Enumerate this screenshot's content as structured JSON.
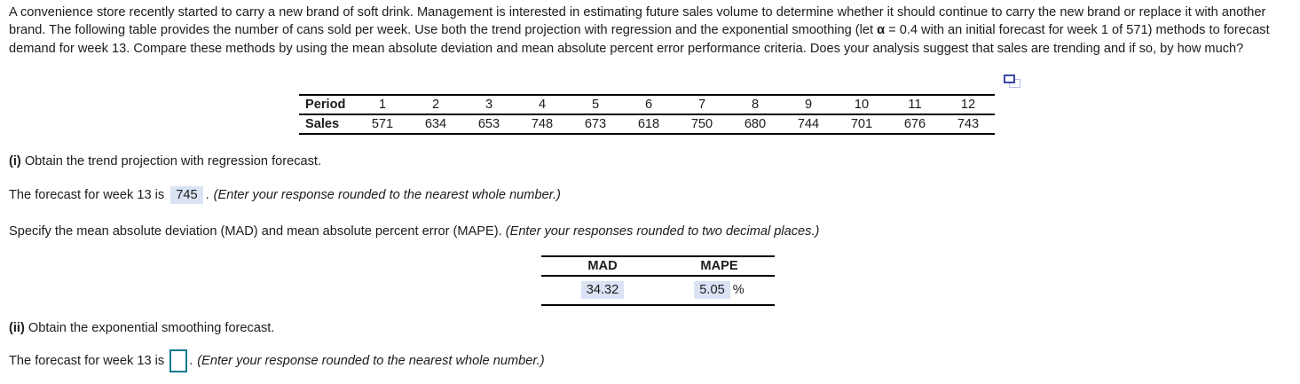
{
  "question": {
    "part1": "A convenience store recently started to carry a new brand of soft drink. Management is interested in estimating future sales volume to determine whether it should continue to carry the new brand or replace it with another brand. The following table provides the number of cans sold per week. Use both the trend projection with regression and the exponential smoothing (let ",
    "alpha": "α",
    "part2": " = 0.4 with an initial forecast for week 1 of 571) methods to forecast demand for week 13. Compare these methods by using the mean absolute deviation and mean absolute percent error performance criteria. Does your analysis suggest that sales are trending and if so, by how much?"
  },
  "icons": {
    "copy_icon": "copy-overlapping-windows-icon"
  },
  "sales_table": {
    "period_label": "Period",
    "sales_label": "Sales",
    "periods": [
      "1",
      "2",
      "3",
      "4",
      "5",
      "6",
      "7",
      "8",
      "9",
      "10",
      "11",
      "12"
    ],
    "sales": [
      "571",
      "634",
      "653",
      "748",
      "673",
      "618",
      "750",
      "680",
      "744",
      "701",
      "676",
      "743"
    ]
  },
  "section_i": {
    "label": "(i)",
    "heading": " Obtain the trend projection with regression forecast.",
    "forecast_prefix": "The forecast for week 13 is",
    "forecast_value": "745",
    "period": ".",
    "note": "(Enter your response rounded to the nearest whole number.)",
    "specify_text": "Specify the mean absolute deviation (MAD) and mean absolute percent error (MAPE).",
    "specify_note": "(Enter your responses rounded to two decimal places.)"
  },
  "mad_mape": {
    "mad_header": "MAD",
    "mape_header": "MAPE",
    "mad_value": "34.32",
    "mape_value": "5.05",
    "mape_unit": "%"
  },
  "section_ii": {
    "label": "(ii)",
    "heading": " Obtain the exponential smoothing forecast.",
    "forecast_prefix": "The forecast for week 13 is",
    "input_value": "",
    "period": ".",
    "note": "(Enter your response rounded to the nearest whole number.)"
  },
  "colors": {
    "answer_highlight": "#dae3f3",
    "input_border": "#0c7a91",
    "icon_front": "#3a47a5",
    "icon_back": "#b6bce4",
    "table_border": "#000000"
  }
}
